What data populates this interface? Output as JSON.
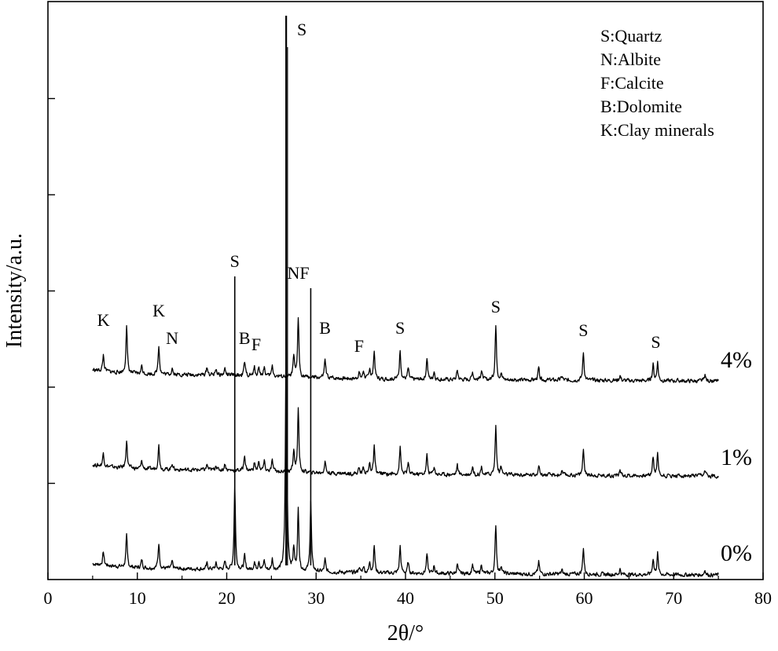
{
  "chart_data": {
    "type": "line",
    "xlabel": "2θ/°",
    "ylabel": "Intensity/a.u.",
    "xlim": [
      0,
      80
    ],
    "x_ticks": [
      "0",
      "10",
      "20",
      "30",
      "40",
      "50",
      "60",
      "70",
      "80"
    ],
    "y_ticks_labeled": false,
    "grid": false,
    "legend_position": "top-right",
    "legend": [
      "S:Quartz",
      "N:Albite",
      "F:Calcite",
      "B:Dolomite",
      "K:Clay minerals"
    ],
    "series": [
      {
        "name": "0%",
        "offset": 0,
        "baseline": 1.0,
        "peaks": [
          [
            6.2,
            1.0
          ],
          [
            8.8,
            2.3
          ],
          [
            10.5,
            0.6
          ],
          [
            12.4,
            1.9
          ],
          [
            13.9,
            0.5
          ],
          [
            17.8,
            0.4
          ],
          [
            18.8,
            0.4
          ],
          [
            19.8,
            0.5
          ],
          [
            20.9,
            6.3
          ],
          [
            22.0,
            1.0
          ],
          [
            23.1,
            0.6
          ],
          [
            23.6,
            0.7
          ],
          [
            24.2,
            0.7
          ],
          [
            25.1,
            0.8
          ],
          [
            26.65,
            19.0
          ],
          [
            27.5,
            1.6
          ],
          [
            28.0,
            4.5
          ],
          [
            29.4,
            5.2
          ],
          [
            31.0,
            0.9
          ],
          [
            34.8,
            0.4
          ],
          [
            35.3,
            0.5
          ],
          [
            36.0,
            0.8
          ],
          [
            36.5,
            2.0
          ],
          [
            39.4,
            2.0
          ],
          [
            40.3,
            0.8
          ],
          [
            42.4,
            1.4
          ],
          [
            43.2,
            0.6
          ],
          [
            45.8,
            0.7
          ],
          [
            47.5,
            0.7
          ],
          [
            48.5,
            0.7
          ],
          [
            50.1,
            3.6
          ],
          [
            50.7,
            0.6
          ],
          [
            54.9,
            0.9
          ],
          [
            57.5,
            0.3
          ],
          [
            59.9,
            2.0
          ],
          [
            64.0,
            0.4
          ],
          [
            67.7,
            1.2
          ],
          [
            68.2,
            1.6
          ],
          [
            73.5,
            0.4
          ]
        ],
        "peak_labels": []
      },
      {
        "name": "1%",
        "offset": 12,
        "baseline": 1.0,
        "peaks": [
          [
            6.2,
            1.0
          ],
          [
            8.8,
            2.1
          ],
          [
            10.5,
            0.6
          ],
          [
            12.4,
            1.8
          ],
          [
            13.9,
            0.5
          ],
          [
            17.8,
            0.4
          ],
          [
            18.8,
            0.4
          ],
          [
            19.8,
            0.5
          ],
          [
            20.9,
            0.0
          ],
          [
            22.0,
            1.2
          ],
          [
            23.1,
            0.6
          ],
          [
            23.6,
            0.7
          ],
          [
            24.2,
            0.7
          ],
          [
            25.1,
            0.8
          ],
          [
            26.65,
            0.0
          ],
          [
            27.5,
            1.6
          ],
          [
            28.0,
            4.6
          ],
          [
            29.4,
            0.0
          ],
          [
            31.0,
            0.9
          ],
          [
            34.8,
            0.4
          ],
          [
            35.3,
            0.5
          ],
          [
            36.0,
            0.8
          ],
          [
            36.5,
            2.0
          ],
          [
            39.4,
            2.0
          ],
          [
            40.3,
            0.8
          ],
          [
            42.4,
            1.4
          ],
          [
            43.2,
            0.6
          ],
          [
            45.8,
            0.7
          ],
          [
            47.5,
            0.6
          ],
          [
            48.5,
            0.6
          ],
          [
            50.1,
            3.6
          ],
          [
            50.7,
            0.6
          ],
          [
            54.9,
            0.8
          ],
          [
            57.5,
            0.3
          ],
          [
            59.9,
            2.0
          ],
          [
            64.0,
            0.4
          ],
          [
            67.7,
            1.4
          ],
          [
            68.2,
            1.6
          ],
          [
            73.5,
            0.4
          ]
        ],
        "peak_labels": []
      },
      {
        "name": "4%",
        "offset": 24,
        "baseline": 1.0,
        "peaks": [
          [
            6.2,
            1.2
          ],
          [
            8.8,
            3.5
          ],
          [
            10.5,
            0.6
          ],
          [
            12.4,
            2.2
          ],
          [
            13.9,
            0.5
          ],
          [
            17.8,
            0.6
          ],
          [
            18.8,
            0.5
          ],
          [
            19.8,
            0.5
          ],
          [
            20.9,
            0.0
          ],
          [
            22.0,
            1.0
          ],
          [
            23.1,
            0.6
          ],
          [
            23.6,
            0.7
          ],
          [
            24.2,
            0.7
          ],
          [
            25.1,
            0.8
          ],
          [
            26.65,
            0.0
          ],
          [
            27.5,
            1.5
          ],
          [
            28.0,
            4.4
          ],
          [
            29.4,
            0.0
          ],
          [
            31.0,
            1.4
          ],
          [
            34.8,
            0.5
          ],
          [
            35.3,
            0.6
          ],
          [
            36.0,
            0.8
          ],
          [
            36.5,
            2.0
          ],
          [
            39.4,
            2.2
          ],
          [
            40.3,
            0.8
          ],
          [
            42.4,
            1.6
          ],
          [
            43.2,
            0.6
          ],
          [
            45.8,
            0.7
          ],
          [
            47.5,
            0.6
          ],
          [
            48.5,
            0.7
          ],
          [
            50.1,
            4.0
          ],
          [
            50.7,
            0.5
          ],
          [
            54.9,
            0.9
          ],
          [
            57.5,
            0.3
          ],
          [
            59.9,
            2.1
          ],
          [
            64.0,
            0.4
          ],
          [
            67.7,
            1.2
          ],
          [
            68.2,
            1.4
          ],
          [
            73.5,
            0.4
          ]
        ],
        "peak_labels": [
          {
            "text": "K",
            "x": 6.2
          },
          {
            "text": "K",
            "x": 12.4
          },
          {
            "text": "N",
            "x": 13.9
          },
          {
            "text": "S",
            "x": 20.9
          },
          {
            "text": "B",
            "x": 22.0
          },
          {
            "text": "F",
            "x": 23.3
          },
          {
            "text": "S",
            "x": 26.65
          },
          {
            "text": "NF",
            "x": 28.0
          },
          {
            "text": "B",
            "x": 31.0
          },
          {
            "text": "F",
            "x": 34.8
          },
          {
            "text": "S",
            "x": 39.4
          },
          {
            "text": "S",
            "x": 50.1
          },
          {
            "text": "S",
            "x": 59.9
          },
          {
            "text": "S",
            "x": 68.0
          }
        ]
      }
    ]
  }
}
